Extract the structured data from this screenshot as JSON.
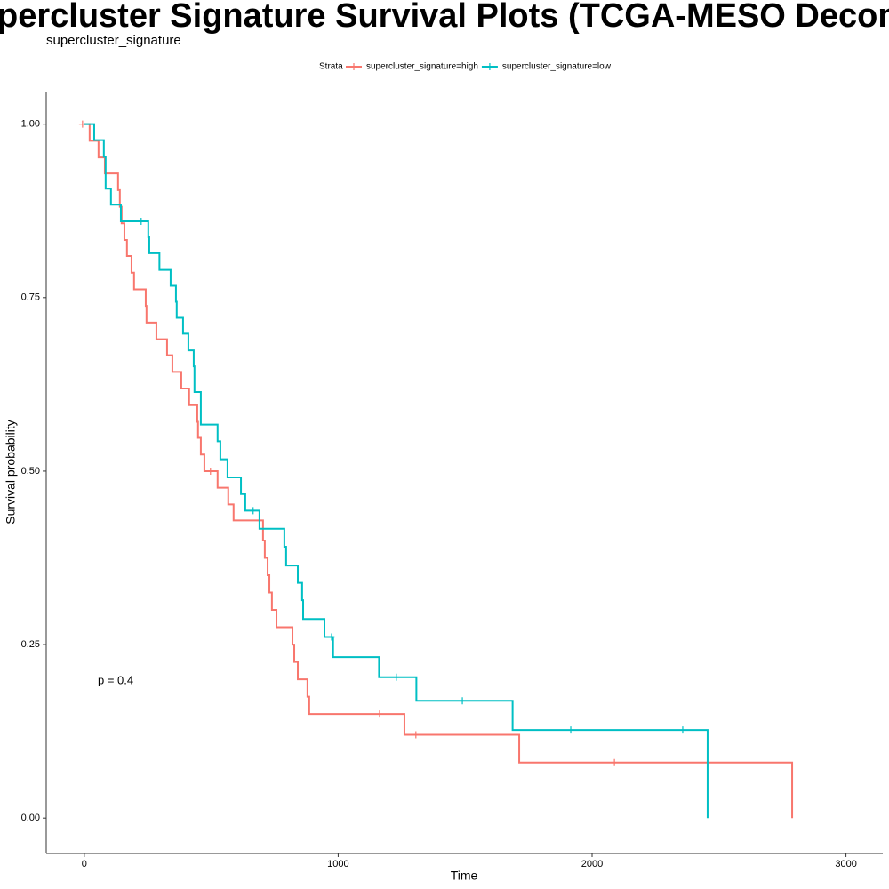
{
  "chart_data": {
    "type": "step",
    "title": "percluster Signature Survival Plots (TCGA-MESO Deconvolve",
    "subtitle": "supercluster_signature",
    "x_label": "Time",
    "y_label": "Survival probability",
    "legend_title": "Strata",
    "legend_position": "top",
    "annotation": "p = 0.4",
    "xlim": [
      -150,
      3145
    ],
    "ylim": [
      -0.051,
      1.047
    ],
    "xticks": [
      0,
      1000,
      2000,
      3000
    ],
    "yticks": [
      {
        "value": 0,
        "label": "0.00"
      },
      {
        "value": 0.25,
        "label": "0.25"
      },
      {
        "value": 0.5,
        "label": "0.50"
      },
      {
        "value": 0.75,
        "label": "0.75"
      },
      {
        "value": 1,
        "label": "1.00"
      }
    ],
    "grid": false,
    "series": [
      {
        "name": "supercluster_signature=high",
        "color": "#f8766d",
        "x": [
          0,
          21,
          56,
          81,
          133,
          140,
          147,
          158,
          168,
          186,
          196,
          242,
          245,
          284,
          326,
          347,
          382,
          413,
          445,
          448,
          459,
          473,
          525,
          567,
          588,
          704,
          711,
          722,
          729,
          739,
          757,
          820,
          827,
          841,
          879,
          886,
          1261,
          1713,
          2788
        ],
        "values": [
          1.0,
          0.976,
          0.952,
          0.929,
          0.905,
          0.881,
          0.857,
          0.833,
          0.81,
          0.786,
          0.762,
          0.738,
          0.714,
          0.69,
          0.667,
          0.643,
          0.619,
          0.595,
          0.571,
          0.548,
          0.524,
          0.5,
          0.476,
          0.452,
          0.429,
          0.4,
          0.375,
          0.35,
          0.325,
          0.3,
          0.275,
          0.25,
          0.225,
          0.2,
          0.175,
          0.15,
          0.12,
          0.08,
          0
        ],
        "censor_x": [
          -7,
          497,
          1163,
          1306,
          2088
        ],
        "censor_values": [
          1.0,
          0.5,
          0.15,
          0.12,
          0.08
        ]
      },
      {
        "name": "supercluster_signature=low",
        "color": "#00bfc4",
        "x": [
          0,
          39,
          77,
          84,
          105,
          144,
          252,
          256,
          296,
          340,
          361,
          364,
          389,
          410,
          431,
          434,
          459,
          525,
          536,
          564,
          617,
          634,
          690,
          788,
          795,
          841,
          858,
          862,
          946,
          980,
          1161,
          1308,
          1687,
          2455
        ],
        "values": [
          1.0,
          0.977,
          0.953,
          0.907,
          0.884,
          0.86,
          0.837,
          0.814,
          0.79,
          0.767,
          0.744,
          0.721,
          0.698,
          0.674,
          0.651,
          0.614,
          0.567,
          0.543,
          0.517,
          0.491,
          0.467,
          0.443,
          0.417,
          0.391,
          0.364,
          0.339,
          0.314,
          0.287,
          0.261,
          0.232,
          0.203,
          0.169,
          0.127,
          0
        ],
        "censor_x": [
          224,
          665,
          974,
          1229,
          1489,
          1916,
          2357
        ],
        "censor_values": [
          0.86,
          0.443,
          0.261,
          0.203,
          0.169,
          0.127,
          0.127
        ]
      }
    ]
  }
}
